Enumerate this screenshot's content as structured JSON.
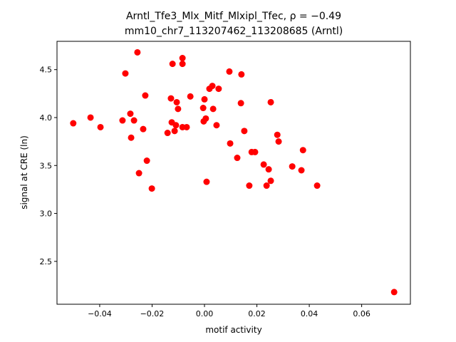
{
  "chart_data": {
    "type": "scatter",
    "title": "Arntl_Tfe3_Mlx_Mitf_Mlxipl_Tfec, ρ = −0.49",
    "subtitle": "mm10_chr7_113207462_113208685 (Arntl)",
    "x_label": "motif activity",
    "y_label": "signal at CRE (ln)",
    "color": "#ff0000",
    "x": [
      -0.0501,
      -0.0435,
      -0.0397,
      -0.0313,
      -0.0302,
      -0.0283,
      -0.028,
      -0.0269,
      -0.0256,
      -0.025,
      -0.0234,
      -0.0226,
      -0.022,
      -0.0201,
      -0.0141,
      -0.0128,
      -0.0125,
      -0.0122,
      -0.0114,
      -0.0109,
      -0.0106,
      -0.0101,
      -0.0084,
      -0.0084,
      -0.0084,
      -0.0068,
      -0.0054,
      -0.0005,
      -0.0003,
      0.0,
      0.0005,
      0.0008,
      0.0019,
      0.003,
      0.0033,
      0.0046,
      0.0054,
      0.0095,
      0.0098,
      0.0125,
      0.0139,
      0.0141,
      0.0152,
      0.0171,
      0.018,
      0.0193,
      0.0226,
      0.0237,
      0.0245,
      0.0253,
      0.0253,
      0.0278,
      0.0283,
      0.0335,
      0.037,
      0.0376,
      0.043,
      0.0724
    ],
    "values": [
      3.94,
      4.0,
      3.9,
      3.97,
      4.46,
      4.04,
      3.79,
      3.97,
      4.68,
      3.42,
      3.88,
      4.23,
      3.55,
      3.26,
      3.84,
      4.2,
      3.95,
      4.56,
      3.86,
      3.92,
      4.16,
      4.09,
      4.62,
      4.56,
      3.9,
      3.9,
      4.22,
      4.1,
      3.96,
      4.19,
      3.99,
      3.33,
      4.3,
      4.33,
      4.09,
      3.92,
      4.3,
      4.48,
      3.73,
      3.58,
      4.15,
      4.45,
      3.86,
      3.29,
      3.64,
      3.64,
      3.51,
      3.29,
      3.46,
      3.34,
      4.16,
      3.82,
      3.75,
      3.49,
      3.45,
      3.66,
      3.29,
      2.18
    ],
    "xlim": [
      -0.0563,
      0.0786
    ],
    "ylim": [
      2.053,
      4.795
    ],
    "xticks": [
      {
        "value": -0.04,
        "label": "−0.04"
      },
      {
        "value": -0.02,
        "label": "−0.02"
      },
      {
        "value": 0,
        "label": "0.00"
      },
      {
        "value": 0.02,
        "label": "0.02"
      },
      {
        "value": 0.04,
        "label": "0.04"
      },
      {
        "value": 0.06,
        "label": "0.06"
      }
    ],
    "yticks": [
      2.5,
      {
        "value": 3,
        "label": "3.0"
      },
      3.5,
      {
        "value": 4,
        "label": "4.0"
      },
      4.5
    ]
  }
}
